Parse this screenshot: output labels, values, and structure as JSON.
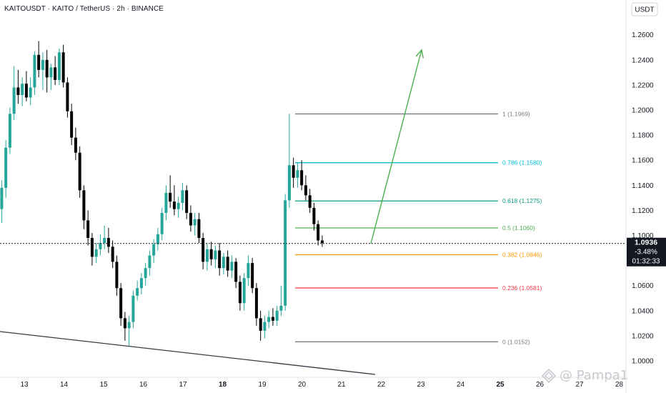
{
  "header": {
    "title": "KAITOUSDT · KAITO / TetherUS · 2h · BINANCE"
  },
  "price_axis": {
    "currency_label": "USDT",
    "ticks": [
      "1.2600",
      "1.2400",
      "1.2200",
      "1.2000",
      "1.1800",
      "1.1600",
      "1.1400",
      "1.1200",
      "1.1000",
      "1.0600",
      "1.0400",
      "1.0200",
      "1.0000"
    ]
  },
  "time_axis": {
    "ticks": [
      "13",
      "14",
      "15",
      "16",
      "17",
      "18",
      "19",
      "20",
      "21",
      "22",
      "23",
      "24",
      "25",
      "26",
      "27",
      "28"
    ],
    "bold_ticks": [
      "18",
      "25"
    ]
  },
  "current_price": {
    "value": 1.0936,
    "price_label": "1.0936",
    "change_label": "-3.48%",
    "countdown_label": "01:32:33",
    "color": "#131722"
  },
  "watermark": {
    "text": "@ Pampa1"
  },
  "fib_levels": [
    {
      "label": "1 (1.1969)",
      "value": 1.1969,
      "color": "#787b86"
    },
    {
      "label": "0.786 (1.1580)",
      "value": 1.158,
      "color": "#00bcd4"
    },
    {
      "label": "0.618 (1.1275)",
      "value": 1.1275,
      "color": "#089981"
    },
    {
      "label": "0.5 (1.1060)",
      "value": 1.106,
      "color": "#4caf50"
    },
    {
      "label": "0.382 (1.0846)",
      "value": 1.0846,
      "color": "#ff9800"
    },
    {
      "label": "0.236 (1.0581)",
      "value": 1.0581,
      "color": "#f23645"
    },
    {
      "label": "0 (1.0152)",
      "value": 1.0152,
      "color": "#787b86"
    }
  ],
  "chart_data": {
    "type": "candlestick",
    "symbol": "KAITOUSDT",
    "interval": "2h",
    "ylim": [
      0.996,
      1.273
    ],
    "up_color": "#26a69a",
    "down_color": "#000000",
    "candles": [
      {
        "o": 1.121,
        "h": 1.144,
        "l": 1.11,
        "c": 1.138
      },
      {
        "o": 1.138,
        "h": 1.176,
        "l": 1.13,
        "c": 1.17
      },
      {
        "o": 1.17,
        "h": 1.202,
        "l": 1.165,
        "c": 1.197
      },
      {
        "o": 1.197,
        "h": 1.235,
        "l": 1.192,
        "c": 1.218
      },
      {
        "o": 1.218,
        "h": 1.232,
        "l": 1.205,
        "c": 1.212
      },
      {
        "o": 1.212,
        "h": 1.226,
        "l": 1.203,
        "c": 1.221
      },
      {
        "o": 1.221,
        "h": 1.231,
        "l": 1.207,
        "c": 1.21
      },
      {
        "o": 1.21,
        "h": 1.226,
        "l": 1.204,
        "c": 1.218
      },
      {
        "o": 1.218,
        "h": 1.247,
        "l": 1.212,
        "c": 1.244
      },
      {
        "o": 1.244,
        "h": 1.255,
        "l": 1.226,
        "c": 1.232
      },
      {
        "o": 1.232,
        "h": 1.246,
        "l": 1.216,
        "c": 1.24
      },
      {
        "o": 1.24,
        "h": 1.248,
        "l": 1.214,
        "c": 1.226
      },
      {
        "o": 1.226,
        "h": 1.237,
        "l": 1.216,
        "c": 1.234
      },
      {
        "o": 1.234,
        "h": 1.243,
        "l": 1.22,
        "c": 1.224
      },
      {
        "o": 1.224,
        "h": 1.249,
        "l": 1.22,
        "c": 1.246
      },
      {
        "o": 1.246,
        "h": 1.252,
        "l": 1.218,
        "c": 1.222
      },
      {
        "o": 1.222,
        "h": 1.226,
        "l": 1.194,
        "c": 1.199
      },
      {
        "o": 1.199,
        "h": 1.205,
        "l": 1.172,
        "c": 1.178
      },
      {
        "o": 1.178,
        "h": 1.186,
        "l": 1.16,
        "c": 1.166
      },
      {
        "o": 1.166,
        "h": 1.171,
        "l": 1.13,
        "c": 1.136
      },
      {
        "o": 1.136,
        "h": 1.14,
        "l": 1.105,
        "c": 1.112
      },
      {
        "o": 1.112,
        "h": 1.12,
        "l": 1.092,
        "c": 1.098
      },
      {
        "o": 1.098,
        "h": 1.102,
        "l": 1.076,
        "c": 1.083
      },
      {
        "o": 1.083,
        "h": 1.094,
        "l": 1.078,
        "c": 1.089
      },
      {
        "o": 1.089,
        "h": 1.101,
        "l": 1.084,
        "c": 1.094
      },
      {
        "o": 1.094,
        "h": 1.108,
        "l": 1.089,
        "c": 1.098
      },
      {
        "o": 1.098,
        "h": 1.106,
        "l": 1.086,
        "c": 1.091
      },
      {
        "o": 1.091,
        "h": 1.096,
        "l": 1.074,
        "c": 1.079
      },
      {
        "o": 1.079,
        "h": 1.084,
        "l": 1.052,
        "c": 1.058
      },
      {
        "o": 1.058,
        "h": 1.062,
        "l": 1.028,
        "c": 1.034
      },
      {
        "o": 1.034,
        "h": 1.039,
        "l": 1.016,
        "c": 1.026
      },
      {
        "o": 1.026,
        "h": 1.036,
        "l": 1.012,
        "c": 1.031
      },
      {
        "o": 1.031,
        "h": 1.056,
        "l": 1.026,
        "c": 1.052
      },
      {
        "o": 1.052,
        "h": 1.064,
        "l": 1.048,
        "c": 1.058
      },
      {
        "o": 1.058,
        "h": 1.07,
        "l": 1.053,
        "c": 1.066
      },
      {
        "o": 1.066,
        "h": 1.078,
        "l": 1.06,
        "c": 1.074
      },
      {
        "o": 1.074,
        "h": 1.088,
        "l": 1.068,
        "c": 1.084
      },
      {
        "o": 1.084,
        "h": 1.097,
        "l": 1.078,
        "c": 1.093
      },
      {
        "o": 1.093,
        "h": 1.106,
        "l": 1.088,
        "c": 1.101
      },
      {
        "o": 1.101,
        "h": 1.122,
        "l": 1.096,
        "c": 1.118
      },
      {
        "o": 1.118,
        "h": 1.14,
        "l": 1.112,
        "c": 1.134
      },
      {
        "o": 1.134,
        "h": 1.148,
        "l": 1.122,
        "c": 1.127
      },
      {
        "o": 1.127,
        "h": 1.14,
        "l": 1.116,
        "c": 1.121
      },
      {
        "o": 1.121,
        "h": 1.131,
        "l": 1.114,
        "c": 1.126
      },
      {
        "o": 1.126,
        "h": 1.142,
        "l": 1.12,
        "c": 1.136
      },
      {
        "o": 1.136,
        "h": 1.14,
        "l": 1.113,
        "c": 1.118
      },
      {
        "o": 1.118,
        "h": 1.124,
        "l": 1.103,
        "c": 1.108
      },
      {
        "o": 1.108,
        "h": 1.118,
        "l": 1.1,
        "c": 1.113
      },
      {
        "o": 1.113,
        "h": 1.118,
        "l": 1.094,
        "c": 1.098
      },
      {
        "o": 1.098,
        "h": 1.102,
        "l": 1.073,
        "c": 1.079
      },
      {
        "o": 1.079,
        "h": 1.094,
        "l": 1.072,
        "c": 1.089
      },
      {
        "o": 1.089,
        "h": 1.095,
        "l": 1.076,
        "c": 1.081
      },
      {
        "o": 1.081,
        "h": 1.092,
        "l": 1.074,
        "c": 1.088
      },
      {
        "o": 1.088,
        "h": 1.094,
        "l": 1.068,
        "c": 1.074
      },
      {
        "o": 1.074,
        "h": 1.086,
        "l": 1.069,
        "c": 1.083
      },
      {
        "o": 1.083,
        "h": 1.088,
        "l": 1.067,
        "c": 1.072
      },
      {
        "o": 1.072,
        "h": 1.084,
        "l": 1.066,
        "c": 1.079
      },
      {
        "o": 1.079,
        "h": 1.082,
        "l": 1.058,
        "c": 1.063
      },
      {
        "o": 1.063,
        "h": 1.068,
        "l": 1.04,
        "c": 1.046
      },
      {
        "o": 1.046,
        "h": 1.07,
        "l": 1.04,
        "c": 1.066
      },
      {
        "o": 1.066,
        "h": 1.084,
        "l": 1.06,
        "c": 1.078
      },
      {
        "o": 1.078,
        "h": 1.082,
        "l": 1.054,
        "c": 1.058
      },
      {
        "o": 1.058,
        "h": 1.062,
        "l": 1.028,
        "c": 1.034
      },
      {
        "o": 1.034,
        "h": 1.04,
        "l": 1.016,
        "c": 1.024
      },
      {
        "o": 1.024,
        "h": 1.036,
        "l": 1.018,
        "c": 1.031
      },
      {
        "o": 1.031,
        "h": 1.04,
        "l": 1.026,
        "c": 1.035
      },
      {
        "o": 1.035,
        "h": 1.042,
        "l": 1.028,
        "c": 1.032
      },
      {
        "o": 1.032,
        "h": 1.044,
        "l": 1.028,
        "c": 1.04
      },
      {
        "o": 1.04,
        "h": 1.06,
        "l": 1.036,
        "c": 1.044
      },
      {
        "o": 1.044,
        "h": 1.133,
        "l": 1.04,
        "c": 1.128
      },
      {
        "o": 1.128,
        "h": 1.197,
        "l": 1.122,
        "c": 1.156
      },
      {
        "o": 1.156,
        "h": 1.162,
        "l": 1.138,
        "c": 1.146
      },
      {
        "o": 1.146,
        "h": 1.158,
        "l": 1.138,
        "c": 1.152
      },
      {
        "o": 1.152,
        "h": 1.16,
        "l": 1.136,
        "c": 1.14
      },
      {
        "o": 1.14,
        "h": 1.148,
        "l": 1.128,
        "c": 1.132
      },
      {
        "o": 1.132,
        "h": 1.137,
        "l": 1.118,
        "c": 1.122
      },
      {
        "o": 1.122,
        "h": 1.126,
        "l": 1.104,
        "c": 1.109
      },
      {
        "o": 1.109,
        "h": 1.112,
        "l": 1.092,
        "c": 1.096
      },
      {
        "o": 1.096,
        "h": 1.1,
        "l": 1.091,
        "c": 1.094
      }
    ],
    "projection_arrow": {
      "from_price": 1.0936,
      "to_price": 1.248
    }
  }
}
